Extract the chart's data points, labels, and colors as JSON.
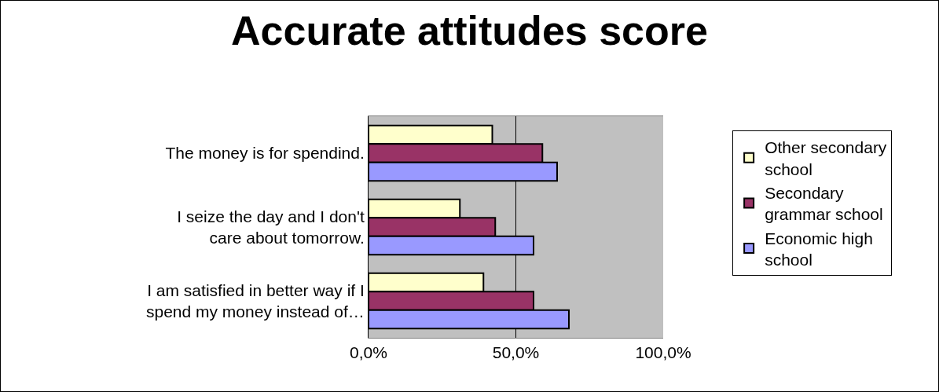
{
  "chart_data": {
    "type": "bar",
    "orientation": "horizontal",
    "title": "Accurate attitudes score",
    "categories": [
      "The money is for spendind.",
      "I seize the day and I don't care about tomorrow.",
      "I am satisfied in better way if I spend my money instead of…"
    ],
    "series": [
      {
        "name": "Other secondary school",
        "color": "#ffffcc",
        "values": [
          42,
          31,
          39
        ]
      },
      {
        "name": "Secondary grammar school",
        "color": "#993366",
        "values": [
          59,
          43,
          56
        ]
      },
      {
        "name": "Economic high school",
        "color": "#9999ff",
        "values": [
          64,
          56,
          68
        ]
      }
    ],
    "xlim": [
      0,
      100
    ],
    "xticks": [
      {
        "value": 0,
        "label": "0,0%"
      },
      {
        "value": 50,
        "label": "50,0%"
      },
      {
        "value": 100,
        "label": "100,0%"
      }
    ],
    "grid": "x",
    "legend": "right"
  }
}
